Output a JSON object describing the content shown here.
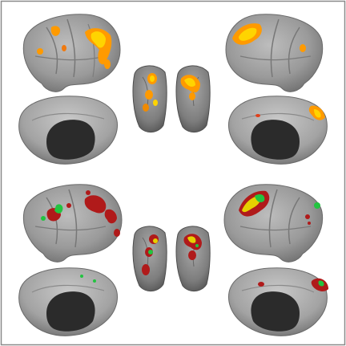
{
  "figure": {
    "background": "#ffffff",
    "frame_color": "#8a8a8a",
    "brain_color": "#9b9b9b",
    "brain_shadow": "#5e5e5e",
    "callosum_color": "#2b2b2b"
  },
  "panels": [
    {
      "name": "top",
      "activation_colors": [
        "#ff9a00",
        "#ffd400",
        "#e0401b"
      ]
    },
    {
      "name": "bottom",
      "activation_colors": [
        "#b01a1a",
        "#22c440",
        "#e6d000"
      ]
    }
  ]
}
